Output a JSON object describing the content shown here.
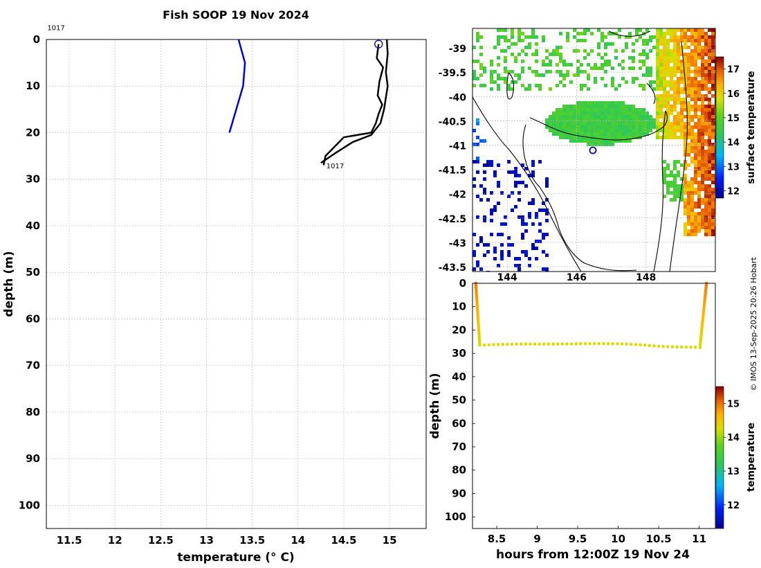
{
  "title": "Fish SOOP 19 Nov 2024",
  "credit": "© IMOS 13-Sep-2025 20:26 Hobart",
  "colors": {
    "profile_black": "#000000",
    "profile_blue": "#0000dd",
    "grid": "#c8c8c8",
    "marker": "#1a1aa0"
  },
  "chart_data": [
    {
      "name": "temperature-profile",
      "type": "line",
      "xlabel": "temperature (° C)",
      "ylabel": "depth (m)",
      "xlim": [
        11.25,
        15.4
      ],
      "ylim": [
        0,
        105
      ],
      "y_reversed": true,
      "xticks": [
        11.5,
        12,
        12.5,
        13,
        13.5,
        14,
        14.5,
        15
      ],
      "yticks": [
        0,
        10,
        20,
        30,
        40,
        50,
        60,
        70,
        80,
        90,
        100
      ],
      "xtick_labels": [
        "11.5",
        "12",
        "12.5",
        "13",
        "13.5",
        "14",
        "14.5",
        "15"
      ],
      "ytick_labels": [
        "0",
        "10",
        "20",
        "30",
        "40",
        "50",
        "60",
        "70",
        "80",
        "90",
        "100"
      ],
      "annotations": [
        {
          "text": "1017",
          "x": 11.26,
          "y": -2
        },
        {
          "text": "1017",
          "x": 14.31,
          "y": 27.7
        }
      ],
      "start_marker": {
        "x": 14.88,
        "y": 1
      },
      "series": [
        {
          "name": "downcast",
          "color": "#000000",
          "x": [
            14.88,
            14.86,
            14.93,
            14.89,
            14.87,
            14.92,
            14.88,
            14.85,
            14.8,
            14.5,
            14.3,
            14.28
          ],
          "y": [
            1,
            4,
            6,
            9,
            12,
            14,
            16,
            18,
            20,
            21,
            25,
            27
          ]
        },
        {
          "name": "upcast",
          "color": "#000000",
          "x": [
            14.97,
            14.98,
            14.96,
            14.98,
            14.94,
            14.9,
            14.8,
            14.6,
            14.4,
            14.25
          ],
          "y": [
            0,
            3,
            7,
            10,
            15,
            18,
            20.5,
            22,
            24.5,
            26.5
          ]
        },
        {
          "name": "climatology",
          "color": "#0000dd",
          "x": [
            13.35,
            13.42,
            13.4,
            13.25
          ],
          "y": [
            0,
            5,
            10,
            20
          ]
        }
      ]
    },
    {
      "name": "surface-temperature-map",
      "type": "heatmap",
      "colorbar_label": "surface temperature",
      "xlim": [
        143.0,
        150.0
      ],
      "ylim": [
        -43.6,
        -38.6
      ],
      "xticks": [
        144,
        146,
        148
      ],
      "xtick_labels": [
        "144",
        "146",
        "148"
      ],
      "yticks": [
        -39,
        -39.5,
        -40,
        -40.5,
        -41,
        -41.5,
        -42,
        -42.5,
        -43,
        -43.5
      ],
      "ytick_labels": [
        "-39",
        "-39.5",
        "-40",
        "-40.5",
        "-41",
        "-41.5",
        "-42",
        "-42.5",
        "-43",
        "-43.5"
      ],
      "clim": [
        11.7,
        17.5
      ],
      "colorbar_ticks": [
        12,
        13,
        14,
        15,
        16,
        17
      ],
      "colorbar_tick_labels": [
        "12",
        "13",
        "14",
        "15",
        "16",
        "17"
      ],
      "vessel_marker": {
        "lon": 146.3,
        "lat": -41.1
      }
    },
    {
      "name": "depth-time-section",
      "type": "scatter",
      "xlabel": "hours from 12:00Z 19 Nov 24",
      "ylabel": "depth (m)",
      "xlim": [
        8.2,
        11.2
      ],
      "ylim": [
        0,
        105
      ],
      "y_reversed": true,
      "xticks": [
        8.5,
        9,
        9.5,
        10,
        10.5,
        11
      ],
      "xtick_labels": [
        "8.5",
        "9",
        "9.5",
        "10",
        "10.5",
        "11"
      ],
      "yticks": [
        0,
        10,
        20,
        30,
        40,
        50,
        60,
        70,
        80,
        90,
        100
      ],
      "ytick_labels": [
        "0",
        "10",
        "20",
        "30",
        "40",
        "50",
        "60",
        "70",
        "80",
        "90",
        "100"
      ],
      "clim": [
        11.3,
        15.5
      ],
      "colorbar_label": "temperature",
      "colorbar_ticks": [
        12,
        13,
        14,
        15
      ],
      "colorbar_tick_labels": [
        "12",
        "13",
        "14",
        "15"
      ],
      "descent": {
        "t_start": 8.24,
        "t_end": 8.29,
        "depth_start": 0,
        "depth_end": 26.5,
        "temp_start": 14.95,
        "temp_end": 14.3
      },
      "bottom": {
        "t_start": 8.29,
        "t_end": 11.01,
        "depth": [
          26.5,
          26.2,
          26.0,
          26.0,
          26.0,
          25.9,
          25.8,
          25.9,
          26.3,
          27.0,
          27.3,
          27.4
        ],
        "temp": 14.3
      },
      "ascent": {
        "t_start": 11.01,
        "t_end": 11.09,
        "depth_start": 27.5,
        "depth_end": 0,
        "temp_start": 14.3,
        "temp_end": 14.95
      }
    }
  ]
}
